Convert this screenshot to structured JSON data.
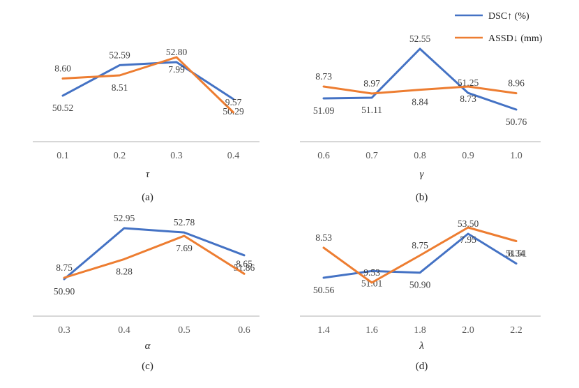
{
  "colors": {
    "dsc": "#4472c4",
    "assd": "#ed7d31",
    "axis": "#bfbfbf"
  },
  "legend": [
    {
      "label": "DSC↑ (%)",
      "color": "#4472c4"
    },
    {
      "label": "ASSD↓ (mm)",
      "color": "#ed7d31"
    }
  ],
  "chart_data": [
    {
      "type": "line",
      "panel": "(a)",
      "xlabel": "τ",
      "categories": [
        "0.1",
        "0.2",
        "0.3",
        "0.4"
      ],
      "series": [
        {
          "name": "DSC↑ (%)",
          "values": [
            50.52,
            52.59,
            52.8,
            50.29
          ],
          "labels": [
            "50.52",
            "52.59",
            "52.80",
            "50.29"
          ]
        },
        {
          "name": "ASSD↓ (mm)",
          "values": [
            8.6,
            8.51,
            7.99,
            9.57
          ],
          "labels": [
            "8.60",
            "8.51",
            "7.99",
            "9.57"
          ]
        }
      ]
    },
    {
      "type": "line",
      "panel": "(b)",
      "xlabel": "γ",
      "categories": [
        "0.6",
        "0.7",
        "0.8",
        "0.9",
        "1.0"
      ],
      "series": [
        {
          "name": "DSC↑ (%)",
          "values": [
            51.09,
            51.11,
            52.55,
            51.25,
            50.76
          ],
          "labels": [
            "51.09",
            "51.11",
            "52.55",
            "51.25",
            "50.76"
          ]
        },
        {
          "name": "ASSD↓ (mm)",
          "values": [
            8.73,
            8.97,
            8.84,
            8.73,
            8.96
          ],
          "labels": [
            "8.73",
            "8.97",
            "8.84",
            "8.73",
            "8.96"
          ]
        }
      ]
    },
    {
      "type": "line",
      "panel": "(c)",
      "xlabel": "α",
      "categories": [
        "0.3",
        "0.4",
        "0.5",
        "0.6"
      ],
      "series": [
        {
          "name": "DSC↑ (%)",
          "values": [
            50.9,
            52.95,
            52.78,
            51.86
          ],
          "labels": [
            "50.90",
            "52.95",
            "52.78",
            "51.86"
          ]
        },
        {
          "name": "ASSD↓ (mm)",
          "values": [
            8.75,
            8.28,
            7.69,
            8.65
          ],
          "labels": [
            "8.75",
            "8.28",
            "7.69",
            "8.65"
          ]
        }
      ]
    },
    {
      "type": "line",
      "panel": "(d)",
      "xlabel": "λ",
      "categories": [
        "1.4",
        "1.6",
        "1.8",
        "2.0",
        "2.2"
      ],
      "series": [
        {
          "name": "DSC↑ (%)",
          "values": [
            50.56,
            51.01,
            50.9,
            53.5,
            51.51
          ],
          "labels": [
            "50.56",
            "51.01",
            "50.90",
            "53.50",
            "51.51"
          ]
        },
        {
          "name": "ASSD↓ (mm)",
          "values": [
            8.53,
            9.53,
            8.75,
            7.95,
            8.34
          ],
          "labels": [
            "8.53",
            "9.53",
            "8.75",
            "7.95",
            "8.34"
          ]
        }
      ]
    }
  ]
}
